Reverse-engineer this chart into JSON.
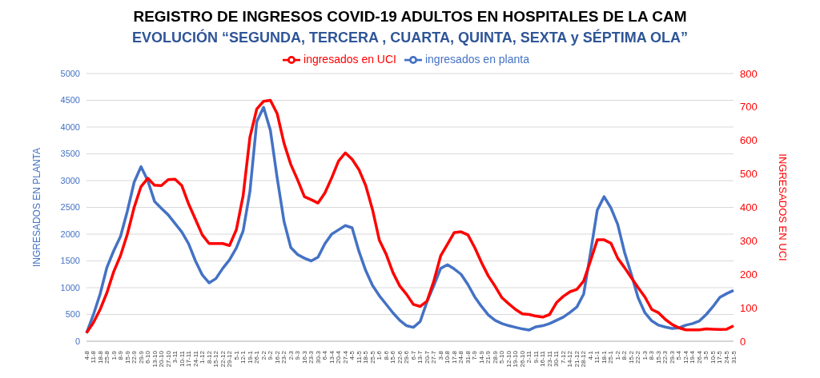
{
  "chart_data": {
    "type": "line",
    "title": "REGISTRO DE INGRESOS COVID-19 ADULTOS  EN HOSPITALES DE LA CAM",
    "subtitle": "EVOLUCIÓN “SEGUNDA, TERCERA , CUARTA, QUINTA, SEXTA y SÉPTIMA OLA”",
    "ylabel": "INGRESADOS EN PLANTA",
    "y2label": "INGRESADOS EN UCI",
    "categories": [
      "4-8",
      "11-8",
      "18-8",
      "25-8",
      "1-9",
      "8-9",
      "15-9",
      "22-9",
      "29-9",
      "6-10",
      "13-10",
      "20-10",
      "27-10",
      "3-11",
      "10-11",
      "17-11",
      "24-11",
      "1-12",
      "8-12",
      "15-12",
      "22-12",
      "29-12",
      "5-1",
      "12-1",
      "19-1",
      "26-1",
      "2-2",
      "9-2",
      "16-2",
      "23-2",
      "2-3",
      "9-3",
      "16-3",
      "23-3",
      "30-3",
      "6-4",
      "13-4",
      "20-4",
      "27-4",
      "4-5",
      "11-5",
      "18-5",
      "25-5",
      "1-6",
      "8-6",
      "15-6",
      "22-6",
      "29-6",
      "6-7",
      "13-7",
      "20-7",
      "27-7",
      "3-8",
      "10-8",
      "17-8",
      "24-8",
      "31-8",
      "7-9",
      "14-9",
      "21-9",
      "28-9",
      "5-10",
      "12-10",
      "19-10",
      "26-10",
      "2-11",
      "9-11",
      "16-11",
      "23-11",
      "30-11",
      "7-12",
      "14-12",
      "21-12",
      "28-12",
      "4-1",
      "11-1",
      "18-1",
      "25-1",
      "1-2",
      "8-2",
      "15-2",
      "22-2",
      "1-3",
      "8-3",
      "15-3",
      "22-3",
      "29-3",
      "5-4",
      "12-4",
      "19-4",
      "26-4",
      "3-5",
      "10-5",
      "17-5",
      "24-5",
      "31-5"
    ],
    "series": [
      {
        "name": "ingresados en planta",
        "color": "#4472c4",
        "values": [
          150,
          490,
          880,
          1380,
          1690,
          1960,
          2430,
          2970,
          3260,
          3000,
          2610,
          2480,
          2360,
          2200,
          2040,
          1820,
          1500,
          1240,
          1090,
          1170,
          1360,
          1520,
          1740,
          2060,
          2800,
          4100,
          4370,
          3940,
          3050,
          2240,
          1750,
          1620,
          1550,
          1500,
          1570,
          1820,
          2000,
          2080,
          2160,
          2120,
          1680,
          1320,
          1040,
          850,
          690,
          530,
          390,
          290,
          260,
          370,
          740,
          1040,
          1360,
          1430,
          1350,
          1250,
          1060,
          830,
          650,
          490,
          390,
          330,
          290,
          260,
          230,
          210,
          270,
          290,
          330,
          390,
          450,
          540,
          640,
          880,
          1650,
          2450,
          2700,
          2490,
          2180,
          1660,
          1250,
          810,
          530,
          380,
          300,
          265,
          240,
          250,
          300,
          330,
          380,
          500,
          650,
          820,
          890,
          950
        ]
      },
      {
        "name": "ingresados en UCI",
        "color": "#ff0000",
        "axis": "y2",
        "values": [
          25,
          55,
          95,
          145,
          208,
          256,
          320,
          400,
          462,
          487,
          466,
          465,
          483,
          484,
          465,
          410,
          364,
          318,
          292,
          292,
          292,
          286,
          333,
          435,
          610,
          694,
          717,
          720,
          680,
          592,
          528,
          482,
          432,
          423,
          413,
          443,
          488,
          538,
          563,
          544,
          513,
          465,
          393,
          302,
          260,
          205,
          165,
          140,
          110,
          104,
          120,
          180,
          255,
          290,
          325,
          327,
          318,
          280,
          235,
          195,
          164,
          130,
          112,
          95,
          82,
          80,
          75,
          72,
          80,
          115,
          134,
          148,
          155,
          180,
          240,
          303,
          303,
          293,
          248,
          220,
          190,
          160,
          132,
          95,
          85,
          65,
          50,
          40,
          34,
          34,
          34,
          37,
          36,
          35,
          36,
          46
        ]
      }
    ],
    "ylim": [
      0,
      5000
    ],
    "yticks": [
      0,
      500,
      1000,
      1500,
      2000,
      2500,
      3000,
      3500,
      4000,
      4500,
      5000
    ],
    "y2lim": [
      0,
      800
    ],
    "y2ticks": [
      0,
      100,
      200,
      300,
      400,
      500,
      600,
      700,
      800
    ],
    "grid": "y",
    "legend": "top",
    "marker": "none",
    "line_style": "solid"
  }
}
